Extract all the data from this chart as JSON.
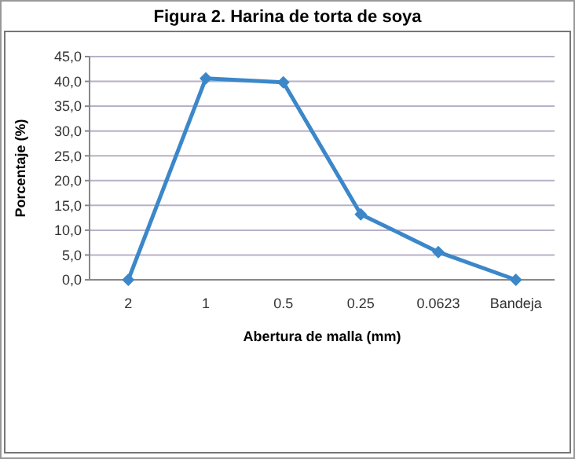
{
  "chart_data": {
    "type": "line",
    "title": "Figura 2. Harina de torta de soya",
    "xlabel": "Abertura de malla (mm)",
    "ylabel": "Porcentaje (%)",
    "categories": [
      "2",
      "1",
      "0.5",
      "0.25",
      "0.0623",
      "Bandeja"
    ],
    "series": [
      {
        "color": "#3b87c9",
        "values": [
          0,
          40.6,
          39.8,
          13.2,
          5.6,
          0
        ]
      }
    ],
    "ylim": [
      0,
      45
    ],
    "yticks": [
      {
        "value": 0,
        "label": "0,0"
      },
      {
        "value": 5,
        "label": "5,0"
      },
      {
        "value": 10,
        "label": "10,0"
      },
      {
        "value": 15,
        "label": "15,0"
      },
      {
        "value": 20,
        "label": "20,0"
      },
      {
        "value": 25,
        "label": "25,0"
      },
      {
        "value": 30,
        "label": "30,0"
      },
      {
        "value": 35,
        "label": "35,0"
      },
      {
        "value": 40,
        "label": "40,0"
      },
      {
        "value": 45,
        "label": "45,0"
      }
    ],
    "grid": "y",
    "marker": "diamond",
    "line_style": "solid"
  }
}
